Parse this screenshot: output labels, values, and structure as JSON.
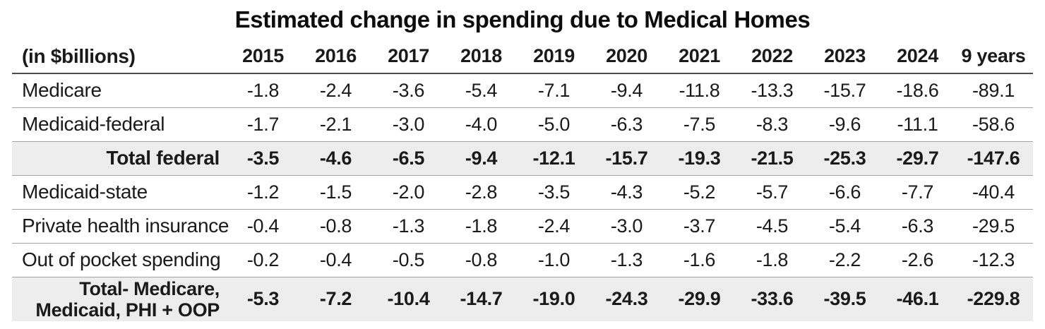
{
  "title": "Estimated change in spending due to Medical Homes",
  "unit_label": "(in $billions)",
  "chart_data": {
    "type": "table",
    "title": "Estimated change in spending due to Medical Homes",
    "unit_label": "(in $billions)",
    "categories": [
      "2015",
      "2016",
      "2017",
      "2018",
      "2019",
      "2020",
      "2021",
      "2022",
      "2023",
      "2024",
      "9 years"
    ],
    "series": [
      {
        "name": "Medicare",
        "style": "normal",
        "values": [
          -1.8,
          -2.4,
          -3.6,
          -5.4,
          -7.1,
          -9.4,
          -11.8,
          -13.3,
          -15.7,
          -18.6,
          -89.1
        ]
      },
      {
        "name": "Medicaid-federal",
        "style": "normal",
        "values": [
          -1.7,
          -2.1,
          -3.0,
          -4.0,
          -5.0,
          -6.3,
          -7.5,
          -8.3,
          -9.6,
          -11.1,
          -58.6
        ]
      },
      {
        "name": "Total federal",
        "style": "total",
        "values": [
          -3.5,
          -4.6,
          -6.5,
          -9.4,
          -12.1,
          -15.7,
          -19.3,
          -21.5,
          -25.3,
          -29.7,
          -147.6
        ]
      },
      {
        "name": "Medicaid-state",
        "style": "normal",
        "values": [
          -1.2,
          -1.5,
          -2.0,
          -2.8,
          -3.5,
          -4.3,
          -5.2,
          -5.7,
          -6.6,
          -7.7,
          -40.4
        ]
      },
      {
        "name": "Private health insurance",
        "style": "normal",
        "values": [
          -0.4,
          -0.8,
          -1.3,
          -1.8,
          -2.4,
          -3.0,
          -3.7,
          -4.5,
          -5.4,
          -6.3,
          -29.5
        ]
      },
      {
        "name": "Out of pocket spending",
        "style": "normal",
        "values": [
          -0.2,
          -0.4,
          -0.5,
          -0.8,
          -1.0,
          -1.3,
          -1.6,
          -1.8,
          -2.2,
          -2.6,
          -12.3
        ]
      },
      {
        "name": "Total- Medicare, Medicaid, PHI + OOP",
        "name_lines": [
          "Total- Medicare,",
          "Medicaid, PHI + OOP"
        ],
        "style": "total",
        "values": [
          -5.3,
          -7.2,
          -10.4,
          -14.7,
          -19.0,
          -24.3,
          -29.9,
          -33.6,
          -39.5,
          -46.1,
          -229.8
        ]
      }
    ],
    "layout": {
      "decimals": 1,
      "value_sign": "negative",
      "grid": "horizontal-dividers",
      "legend": "none"
    },
    "colors": {
      "text": "#1a1a1a",
      "total_row_bg": "#ededed",
      "row_divider": "#a3a3a3",
      "header_divider": "#4d4d4d",
      "background": "#ffffff"
    }
  }
}
